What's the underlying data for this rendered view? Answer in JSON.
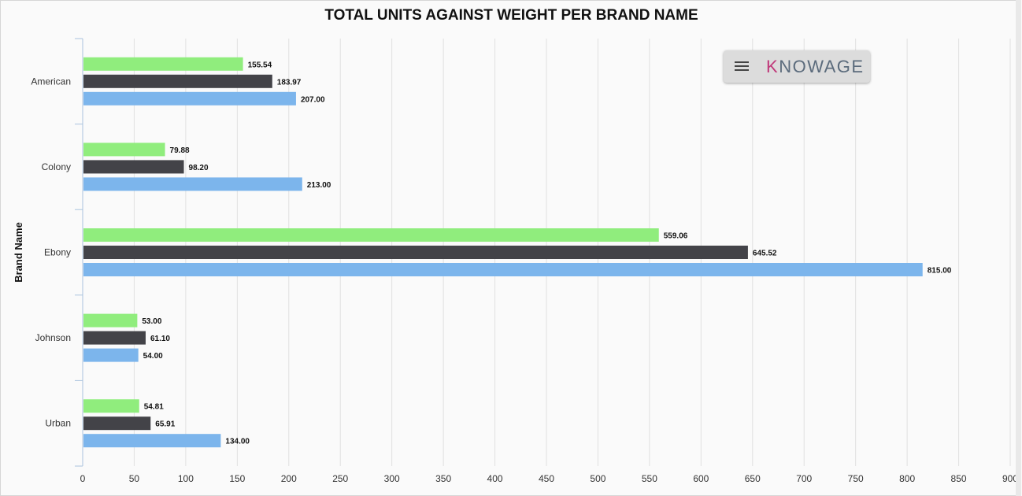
{
  "chart_data": {
    "type": "bar",
    "orientation": "horizontal",
    "title": "TOTAL UNITS AGAINST WEIGHT PER BRAND NAME",
    "ylabel": "Brand Name",
    "xlabel": "",
    "categories": [
      "American",
      "Colony",
      "Ebony",
      "Johnson",
      "Urban"
    ],
    "series": [
      {
        "color": "#90ed7d",
        "values": [
          155.54,
          79.88,
          559.06,
          53.0,
          54.81
        ]
      },
      {
        "color": "#434348",
        "values": [
          183.97,
          98.2,
          645.52,
          61.1,
          65.91
        ]
      },
      {
        "color": "#7cb5ec",
        "values": [
          207.0,
          213.0,
          815.0,
          54.0,
          134.0
        ]
      }
    ],
    "xlim": [
      0,
      900
    ],
    "x_ticks": [
      0,
      50,
      100,
      150,
      200,
      250,
      300,
      350,
      400,
      450,
      500,
      550,
      600,
      650,
      700,
      750,
      800,
      850,
      900
    ],
    "grid": true,
    "data_labels": true,
    "label_decimals": 2
  },
  "menu": {
    "icon": "hamburger-icon",
    "logo_text": "KNOWAGE"
  }
}
